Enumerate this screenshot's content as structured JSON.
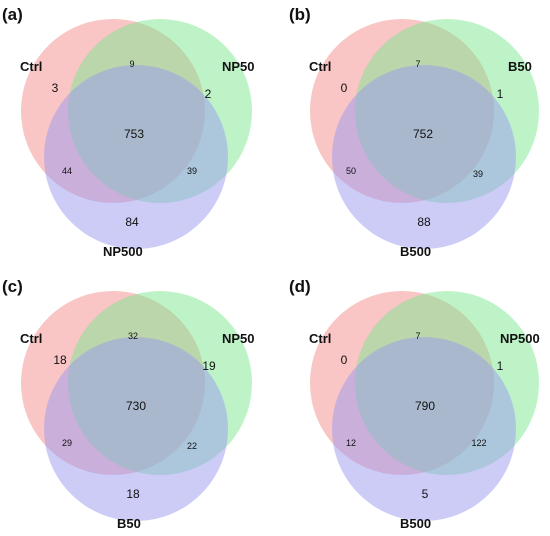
{
  "colors": {
    "set_a": "#f48b8b",
    "set_b": "#7de88f",
    "set_c": "#9a9af0"
  },
  "panels": [
    {
      "label": "(a)",
      "sets": [
        "Ctrl",
        "NP50",
        "NP500"
      ],
      "counts": {
        "a_only": "3",
        "b_only": "2",
        "c_only": "84",
        "ab": "9",
        "ac": "44",
        "bc": "39",
        "abc": "753"
      }
    },
    {
      "label": "(b)",
      "sets": [
        "Ctrl",
        "B50",
        "B500"
      ],
      "counts": {
        "a_only": "0",
        "b_only": "1",
        "c_only": "88",
        "ab": "7",
        "ac": "50",
        "bc": "39",
        "abc": "752"
      }
    },
    {
      "label": "(c)",
      "sets": [
        "Ctrl",
        "NP50",
        "B50"
      ],
      "counts": {
        "a_only": "18",
        "b_only": "19",
        "c_only": "18",
        "ab": "32",
        "ac": "29",
        "bc": "22",
        "abc": "730"
      }
    },
    {
      "label": "(d)",
      "sets": [
        "Ctrl",
        "NP500",
        "B500"
      ],
      "counts": {
        "a_only": "0",
        "b_only": "1",
        "c_only": "5",
        "ab": "7",
        "ac": "12",
        "bc": "122",
        "abc": "790"
      }
    }
  ]
}
